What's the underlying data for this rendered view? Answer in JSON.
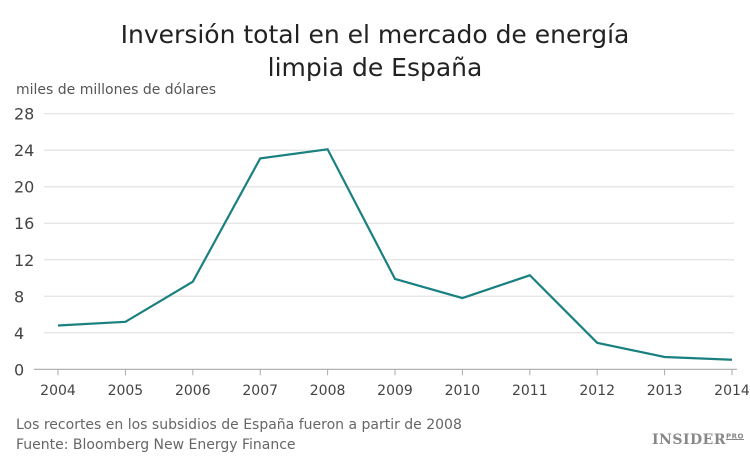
{
  "chart_data": {
    "type": "line",
    "title": "Inversión total en el mercado de energía limpia de España",
    "title_lines": [
      "Inversión total en el mercado de energía",
      "limpia de España"
    ],
    "ylabel": "miles de millones de dólares",
    "xlabel": "",
    "x": [
      "2004",
      "2005",
      "2006",
      "2007",
      "2008",
      "2009",
      "2010",
      "2011",
      "2012",
      "2013",
      "2014"
    ],
    "values": [
      4.8,
      5.2,
      9.6,
      23.1,
      24.1,
      9.9,
      7.8,
      10.3,
      2.9,
      1.35,
      1.05
    ],
    "ylim": [
      0,
      28
    ],
    "yticks": [
      0,
      4,
      8,
      12,
      16,
      20,
      24,
      28
    ],
    "grid": "horizontal",
    "line_color": "#1a8080",
    "grid_color": "#e3e3e3"
  },
  "footer": {
    "note": "Los recortes en los subsidios de España fueron a partir de 2008",
    "source": "Fuente: Bloomberg New Energy Finance",
    "logo_main": "INSIDER",
    "logo_sup": "PRO"
  }
}
